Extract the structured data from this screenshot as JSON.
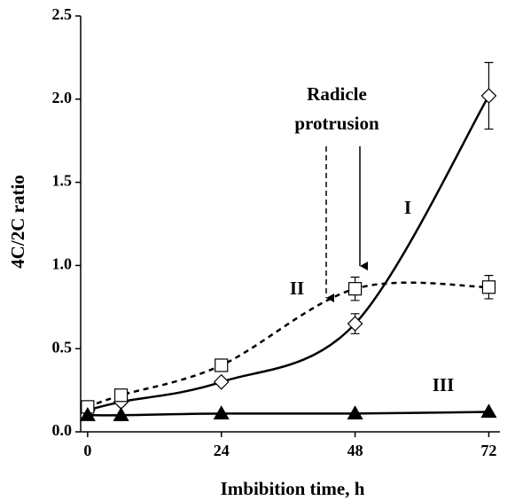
{
  "chart_data": {
    "type": "line",
    "y_label": "4C/2C ratio",
    "x_label": "Imbibition time, h",
    "annotation_lines": [
      "Radicle",
      "protrusion"
    ],
    "x": [
      0,
      6,
      24,
      48,
      72
    ],
    "series": [
      {
        "name": "I",
        "color": "#000000",
        "marker": "diamond",
        "line_style": "solid",
        "values": [
          0.13,
          0.18,
          0.3,
          0.65,
          2.02
        ],
        "errors": [
          null,
          null,
          null,
          0.06,
          0.2
        ]
      },
      {
        "name": "II",
        "color": "#000000",
        "marker": "square",
        "line_style": "dashed",
        "values": [
          0.15,
          0.22,
          0.4,
          0.86,
          0.87
        ],
        "errors": [
          null,
          null,
          null,
          0.07,
          0.07
        ]
      },
      {
        "name": "III",
        "color": "#000000",
        "marker": "triangle",
        "line_style": "solid",
        "values": [
          0.1,
          0.1,
          0.11,
          0.11,
          0.12
        ],
        "errors": [
          null,
          null,
          null,
          null,
          null
        ]
      }
    ],
    "xlim": [
      -1.25,
      74
    ],
    "ylim": [
      0,
      2.5
    ],
    "xticks": [
      0,
      24,
      48,
      72
    ],
    "yticks": [
      {
        "value": 0,
        "label": "0.0"
      },
      0.5,
      {
        "value": 1,
        "label": "1.0"
      },
      1.5,
      {
        "value": 2,
        "label": "2.0"
      },
      2.5
    ]
  }
}
